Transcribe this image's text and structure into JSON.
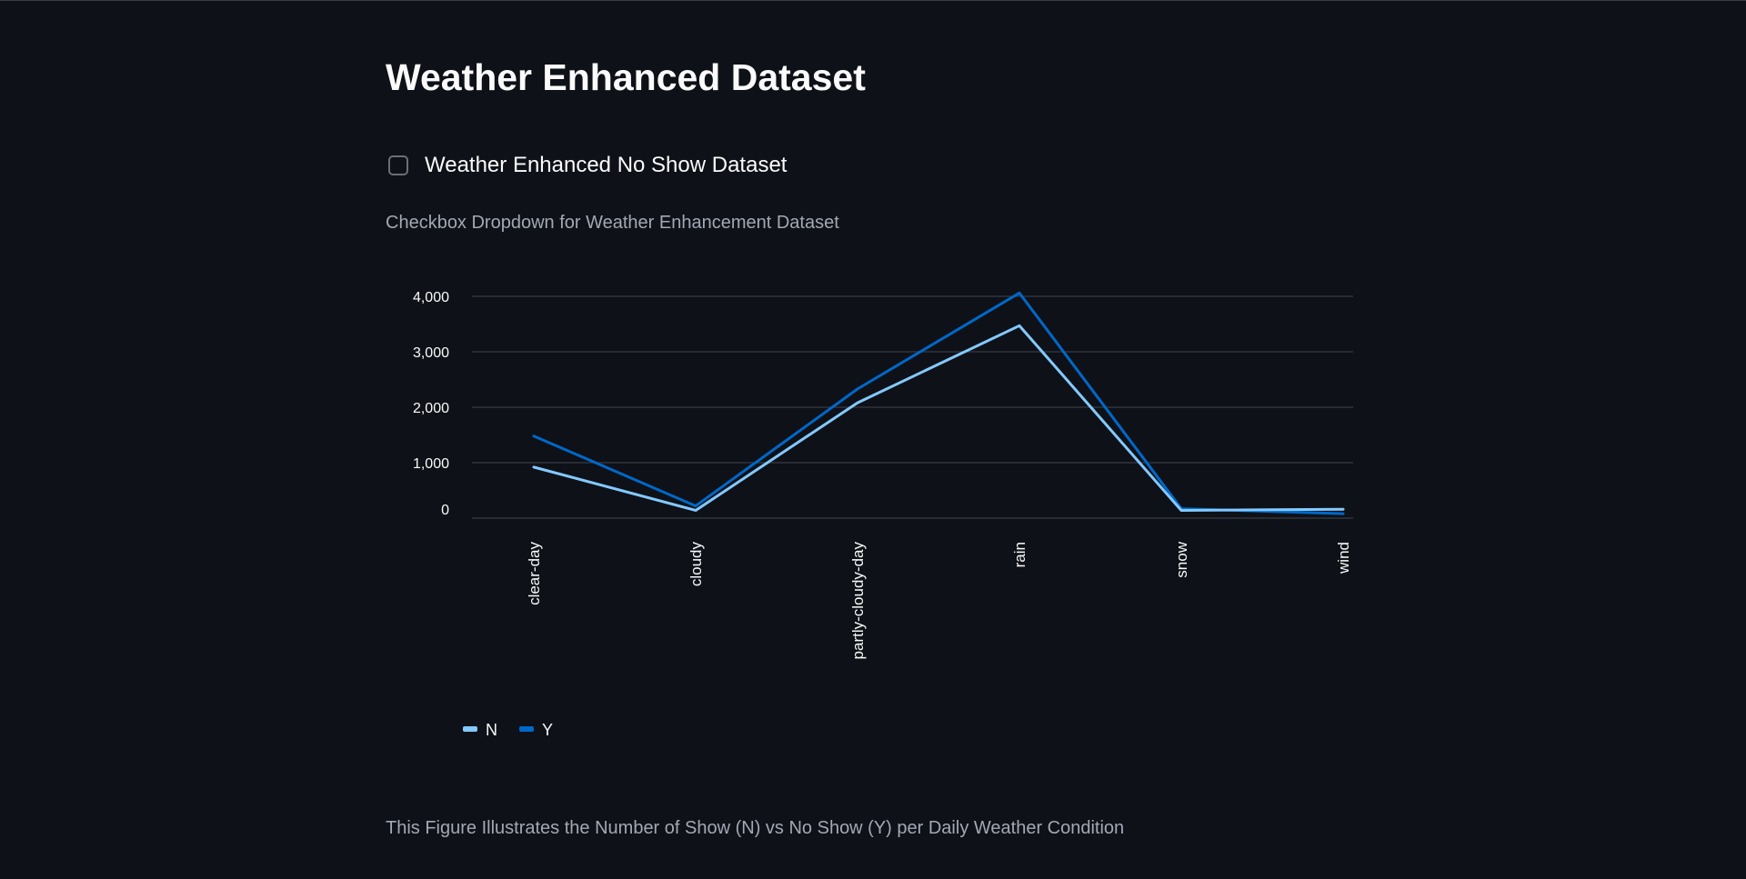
{
  "page": {
    "title": "Weather Enhanced Dataset",
    "checkbox_label": "Weather Enhanced No Show Dataset",
    "checkbox_checked": false,
    "caption_top": "Checkbox Dropdown for Weather Enhancement Dataset",
    "caption_bottom": "This Figure Illustrates the Number of Show (N) vs No Show (Y) per Daily Weather Condition"
  },
  "colors": {
    "background": "#0e1117",
    "series_N": "#83c9ff",
    "series_Y": "#0068c9",
    "gridline": "#31333f",
    "caption": "#a3a8b4"
  },
  "chart_data": {
    "type": "line",
    "categories": [
      "clear-day",
      "cloudy",
      "partly-cloudy-day",
      "rain",
      "snow",
      "wind"
    ],
    "series": [
      {
        "name": "N",
        "values": [
          920,
          140,
          2080,
          3470,
          140,
          160
        ]
      },
      {
        "name": "Y",
        "values": [
          1480,
          220,
          2330,
          4060,
          170,
          80
        ]
      }
    ],
    "ylim": [
      0,
      4000
    ],
    "yticks": [
      0,
      1000,
      2000,
      3000,
      4000
    ],
    "ytick_labels": [
      "0",
      "1,000",
      "2,000",
      "3,000",
      "4,000"
    ],
    "grid": true,
    "legend_position": "bottom-left",
    "title": "",
    "xlabel": "",
    "ylabel": ""
  }
}
